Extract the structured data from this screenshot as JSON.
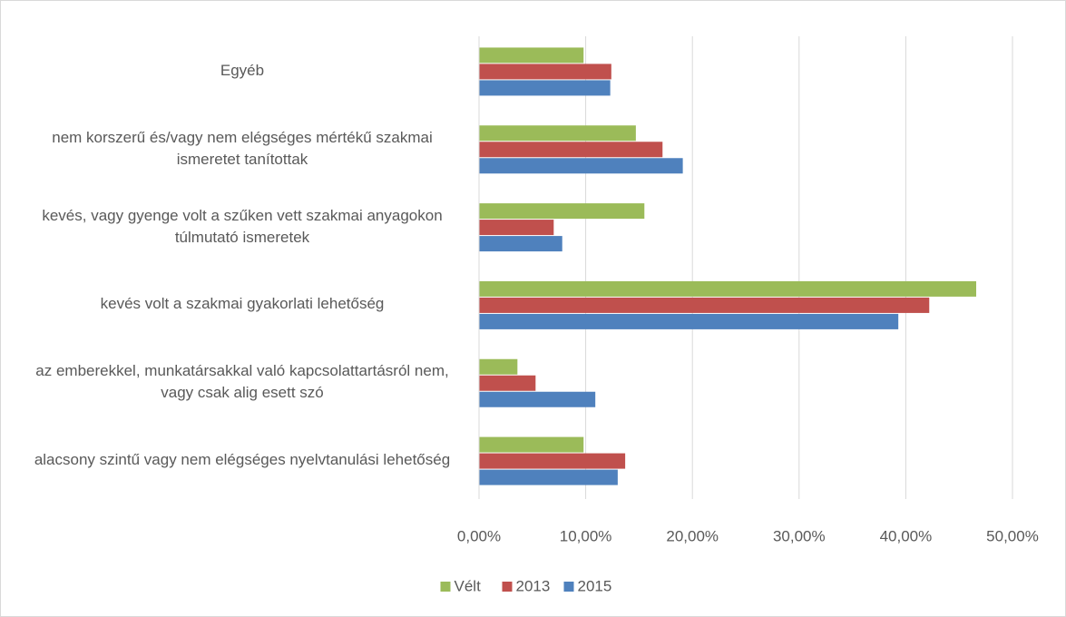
{
  "chart_data": {
    "type": "hbar",
    "categories": [
      "Egyéb",
      "nem korszerű és/vagy nem elégséges mértékű szakmai ismeretet tanítottak",
      "kevés, vagy gyenge volt a szűken vett szakmai anyagokon túlmutató ismeretek",
      "kevés volt a szakmai gyakorlati lehetőség",
      "az emberekkel, munkatársakkal való kapcsolattartásról nem, vagy csak alig esett szó",
      "alacsony szintű vagy nem elégséges nyelvtanulási lehetőség"
    ],
    "series": [
      {
        "name": "Vélt",
        "color": "#9bbb59",
        "values": [
          9.8,
          14.7,
          15.5,
          46.6,
          3.6,
          9.8
        ]
      },
      {
        "name": "2013",
        "color": "#c0504d",
        "values": [
          12.4,
          17.2,
          7.0,
          42.2,
          5.3,
          13.7
        ]
      },
      {
        "name": "2015",
        "color": "#4f81bd",
        "values": [
          12.3,
          19.1,
          7.8,
          39.3,
          10.9,
          13.0
        ]
      }
    ],
    "xlim": [
      0,
      50
    ],
    "xticks": [
      {
        "value": 0,
        "label": "0,00%"
      },
      {
        "value": 10,
        "label": "10,00%"
      },
      {
        "value": 20,
        "label": "20,00%"
      },
      {
        "value": 30,
        "label": "30,00%"
      },
      {
        "value": 40,
        "label": "40,00%"
      },
      {
        "value": 50,
        "label": "50,00%"
      }
    ],
    "grid": true,
    "legend": "bottom"
  }
}
